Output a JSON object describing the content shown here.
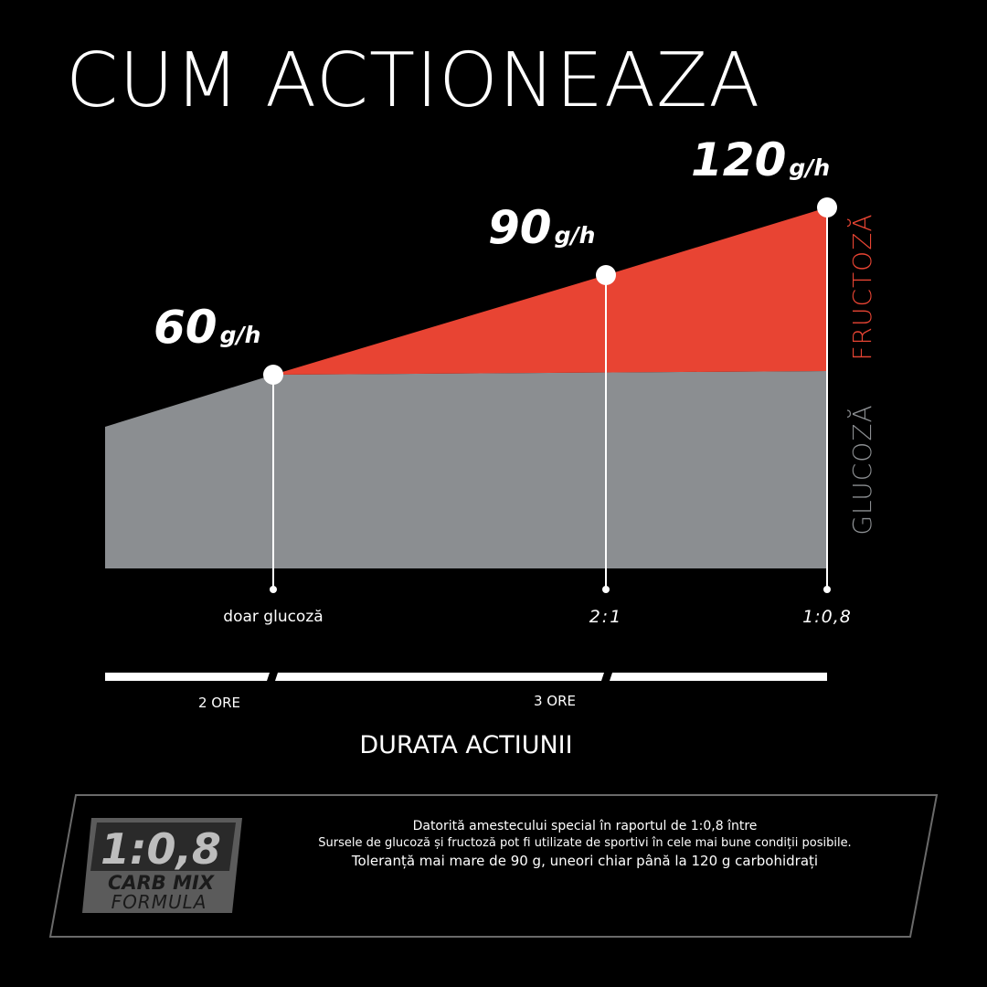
{
  "title": "CUM ACTIONEAZA",
  "chart_data": {
    "type": "area",
    "title": "CUM ACTIONEAZA",
    "xlabel": "DURATA ACTIUNII",
    "points": [
      {
        "rate": "60",
        "unit": "g/h",
        "ratio": "doar glucoză"
      },
      {
        "rate": "90",
        "unit": "g/h",
        "ratio": "2:1"
      },
      {
        "rate": "120",
        "unit": "g/h",
        "ratio": "1:0,8"
      }
    ],
    "series": [
      {
        "name": "GLUCOZĂ",
        "color": "#8b8e91"
      },
      {
        "name": "FRUCTOZĂ",
        "color": "#e84433"
      }
    ],
    "durations": [
      {
        "label": "2 ORE"
      },
      {
        "label": "3 ORE"
      }
    ]
  },
  "badge": {
    "ratio": "1:0,8",
    "line1": "CARB MIX",
    "line2": "FORMULA"
  },
  "info": {
    "line1": "Datorită amestecului special în raportul de 1:0,8 între",
    "line2": "Sursele de glucoză și fructoză pot fi utilizate de sportivi în cele mai bune condiții posibile.",
    "line3": "Toleranță mai mare de 90 g, uneori chiar până la 120 g carbohidrați"
  },
  "colors": {
    "background": "#000000",
    "glucose": "#8b8e91",
    "fructose": "#e84433",
    "text": "#ffffff"
  }
}
